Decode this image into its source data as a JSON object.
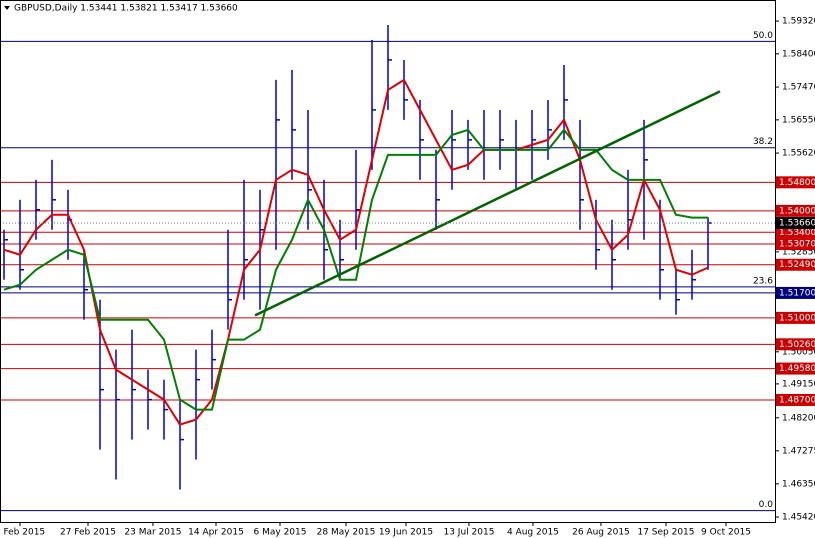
{
  "chart_data": {
    "type": "ohlc",
    "title": "GBPUSD,Daily  1.53441 1.53821 1.53417 1.53660",
    "ylim": [
      1.4528,
      1.5991
    ],
    "yticks": [
      {
        "value": 1.5932,
        "label": "1.59320"
      },
      {
        "value": 1.584,
        "label": "1.58400"
      },
      {
        "value": 1.5747,
        "label": "1.57470"
      },
      {
        "value": 1.5655,
        "label": "1.56550"
      },
      {
        "value": 1.5562,
        "label": "1.55620"
      },
      {
        "value": 1.5285,
        "label": "1.52850"
      },
      {
        "value": 1.5005,
        "label": "1.50050"
      },
      {
        "value": 1.4915,
        "label": "1.49150"
      },
      {
        "value": 1.482,
        "label": "1.48200"
      },
      {
        "value": 1.47275,
        "label": "1.47275"
      },
      {
        "value": 1.4635,
        "label": "1.46350"
      },
      {
        "value": 1.4542,
        "label": "1.45420"
      }
    ],
    "xticks": [
      {
        "value": 1,
        "label": "5 Feb 2015"
      },
      {
        "value": 5.25,
        "label": "27 Feb 2015"
      },
      {
        "value": 9.31,
        "label": "23 Mar 2015"
      },
      {
        "value": 13.25,
        "label": "14 Apr 2015"
      },
      {
        "value": 17.25,
        "label": "6 May 2015"
      },
      {
        "value": 21.375,
        "label": "28 May 2015"
      },
      {
        "value": 25.125,
        "label": "19 Jun 2015"
      },
      {
        "value": 29.06,
        "label": "13 Jul 2015"
      },
      {
        "value": 33.06,
        "label": "4 Aug 2015"
      },
      {
        "value": 37.31,
        "label": "26 Aug 2015"
      },
      {
        "value": 41.375,
        "label": "17 Sep 2015"
      },
      {
        "value": 45.125,
        "label": "9 Oct 2015"
      }
    ],
    "color": "#0000c8",
    "high": [
      1.5347,
      1.5431,
      1.5487,
      1.5543,
      1.5459,
      1.5291,
      1.5151,
      1.5011,
      1.5067,
      1.4955,
      1.4927,
      1.4871,
      1.5011,
      1.5067,
      1.5347,
      1.5487,
      1.5459,
      1.5767,
      1.5795,
      1.5683,
      1.5487,
      1.5375,
      1.5571,
      1.5879,
      1.5921,
      1.5823,
      1.5711,
      1.5571,
      1.5683,
      1.5655,
      1.5683,
      1.5683,
      1.5655,
      1.5683,
      1.5711,
      1.5809,
      1.5655,
      1.5431,
      1.5375,
      1.5515,
      1.5655,
      1.5431,
      1.5235,
      1.5291,
      1.5382
    ],
    "low": [
      1.5207,
      1.5179,
      1.5319,
      1.5347,
      1.5263,
      1.5095,
      1.4731,
      1.4647,
      1.4759,
      1.4787,
      1.4759,
      1.4619,
      1.4703,
      1.4899,
      1.5067,
      1.5151,
      1.5123,
      1.5291,
      1.5487,
      1.5347,
      1.5207,
      1.5207,
      1.5291,
      1.5515,
      1.5683,
      1.5655,
      1.5487,
      1.5347,
      1.5459,
      1.5515,
      1.5487,
      1.5515,
      1.5459,
      1.5487,
      1.5543,
      1.5599,
      1.5347,
      1.5235,
      1.5179,
      1.5291,
      1.5319,
      1.5151,
      1.5109,
      1.5151,
      1.5235
    ],
    "close": [
      1.5319,
      1.5235,
      1.5403,
      1.5431,
      1.5375,
      1.5179,
      1.4899,
      1.4871,
      1.4899,
      1.4871,
      1.4843,
      1.4759,
      1.4927,
      1.4983,
      1.5151,
      1.5263,
      1.5347,
      1.5655,
      1.5627,
      1.5459,
      1.5291,
      1.5263,
      1.5403,
      1.5683,
      1.5823,
      1.5711,
      1.5599,
      1.5431,
      1.5599,
      1.5599,
      1.5571,
      1.5599,
      1.5571,
      1.5599,
      1.5627,
      1.5711,
      1.5431,
      1.5291,
      1.5263,
      1.5375,
      1.5543,
      1.5235,
      1.5151,
      1.5207,
      1.5366
    ],
    "series": [
      {
        "color": "#e00000",
        "values": [
          1.5291,
          1.5277,
          1.5347,
          1.5389,
          1.5389,
          1.5291,
          1.5067,
          1.4955,
          1.4927,
          1.4899,
          1.4871,
          1.4801,
          1.4815,
          1.4871,
          1.5039,
          1.5235,
          1.5291,
          1.5487,
          1.5515,
          1.5501,
          1.5403,
          1.5319,
          1.5347,
          1.5543,
          1.5739,
          1.5767,
          1.5683,
          1.5599,
          1.5515,
          1.5529,
          1.5571,
          1.5571,
          1.5571,
          1.5585,
          1.5599,
          1.5655,
          1.5543,
          1.5375,
          1.5291,
          1.5333,
          1.5487,
          1.5403,
          1.5235,
          1.5221,
          1.5241
        ]
      },
      {
        "color": "#008000",
        "values": [
          1.5179,
          1.5193,
          1.5235,
          1.5263,
          1.5291,
          1.5277,
          1.5095,
          1.5095,
          1.5095,
          1.5095,
          1.5039,
          1.4871,
          1.4843,
          1.4843,
          1.5039,
          1.5039,
          1.5067,
          1.5235,
          1.5319,
          1.5431,
          1.5347,
          1.5207,
          1.5207,
          1.5431,
          1.5557,
          1.5557,
          1.5557,
          1.5557,
          1.5613,
          1.5627,
          1.5571,
          1.5571,
          1.5571,
          1.5571,
          1.5571,
          1.5627,
          1.5571,
          1.5571,
          1.5515,
          1.5487,
          1.5487,
          1.5487,
          1.5389,
          1.5381,
          1.5381
        ]
      }
    ],
    "trendline": {
      "x": [
        15.69,
        44.75
      ],
      "values": [
        1.5107,
        1.5735
      ],
      "color": "#006400"
    },
    "levels": [
      {
        "value": 1.548,
        "label": "1.54800",
        "color": "#cc0000"
      },
      {
        "value": 1.54,
        "label": "1.54000",
        "color": "#cc0000"
      },
      {
        "value": 1.534,
        "label": "1.53400",
        "color": "#cc0000"
      },
      {
        "value": 1.5307,
        "label": "1.53070",
        "color": "#cc0000"
      },
      {
        "value": 1.5249,
        "label": "1.52490",
        "color": "#cc0000"
      },
      {
        "value": 1.517,
        "label": "1.51700",
        "color": "#000080"
      },
      {
        "value": 1.51,
        "label": "1.51000",
        "color": "#cc0000"
      },
      {
        "value": 1.5026,
        "label": "1.50260",
        "color": "#cc0000"
      },
      {
        "value": 1.4958,
        "label": "1.49580",
        "color": "#cc0000"
      },
      {
        "value": 1.487,
        "label": "1.48700",
        "color": "#cc0000"
      }
    ],
    "fib_levels": [
      {
        "value": 1.5875,
        "label": "50.0"
      },
      {
        "value": 1.5577,
        "label": "38.2"
      },
      {
        "value": 1.5187,
        "label": "23.6"
      },
      {
        "value": 1.456,
        "label": "0.0"
      }
    ],
    "fib_color": "#000080",
    "current_price": {
      "value": 1.5366,
      "label": "1.53660"
    }
  }
}
